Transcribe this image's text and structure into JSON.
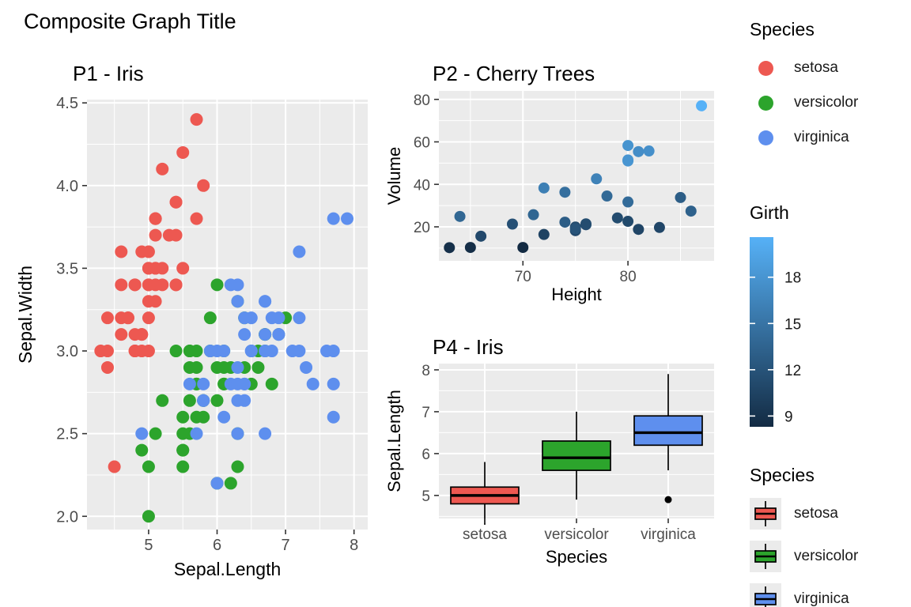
{
  "page": {
    "title": "Composite Graph Title"
  },
  "palette": {
    "panel_bg": "#EBEBEB",
    "grid": "#FFFFFF",
    "tick_text": "#4D4D4D",
    "tick_mark": "#333333",
    "title_text": "#000000",
    "species": {
      "setosa": "#ED5851",
      "versicolor": "#2CA42C",
      "virginica": "#5E8FEE"
    },
    "girth_gradient": {
      "low": "#132B43",
      "high": "#56B1F7"
    }
  },
  "legends": {
    "species_points": {
      "title": "Species",
      "items": [
        {
          "species": "setosa",
          "label": "setosa"
        },
        {
          "species": "versicolor",
          "label": "versicolor"
        },
        {
          "species": "virginica",
          "label": "virginica"
        }
      ]
    },
    "girth": {
      "title": "Girth",
      "domain": [
        8.3,
        20.6
      ],
      "ticks": [
        18,
        15,
        12,
        9
      ],
      "low": "#132B43",
      "high": "#56B1F7"
    },
    "species_box": {
      "title": "Species",
      "items": [
        {
          "species": "setosa",
          "label": "setosa"
        },
        {
          "species": "versicolor",
          "label": "versicolor"
        },
        {
          "species": "virginica",
          "label": "virginica"
        }
      ]
    }
  },
  "chart_data": [
    {
      "id": "p1",
      "type": "scatter",
      "title": "P1 - Iris",
      "xlabel": "Sepal.Length",
      "ylabel": "Sepal.Width",
      "xdomain": [
        4.1,
        8.2
      ],
      "ydomain": [
        1.92,
        4.52
      ],
      "xticks": [
        5,
        6,
        7,
        8
      ],
      "yticks": [
        2.0,
        2.5,
        3.0,
        3.5,
        4.0,
        4.5
      ],
      "ytick_labels": [
        "2.0",
        "2.5",
        "3.0",
        "3.5",
        "4.0",
        "4.5"
      ],
      "series": [
        {
          "name": "setosa",
          "points": [
            [
              5.1,
              3.5
            ],
            [
              4.9,
              3.0
            ],
            [
              4.7,
              3.2
            ],
            [
              4.6,
              3.1
            ],
            [
              5.0,
              3.6
            ],
            [
              5.4,
              3.9
            ],
            [
              4.6,
              3.4
            ],
            [
              5.0,
              3.4
            ],
            [
              4.4,
              2.9
            ],
            [
              4.9,
              3.1
            ],
            [
              5.4,
              3.7
            ],
            [
              4.8,
              3.4
            ],
            [
              4.8,
              3.0
            ],
            [
              4.3,
              3.0
            ],
            [
              5.8,
              4.0
            ],
            [
              5.7,
              4.4
            ],
            [
              5.4,
              3.9
            ],
            [
              5.1,
              3.5
            ],
            [
              5.7,
              3.8
            ],
            [
              5.1,
              3.8
            ],
            [
              5.4,
              3.4
            ],
            [
              5.1,
              3.7
            ],
            [
              4.6,
              3.6
            ],
            [
              5.1,
              3.3
            ],
            [
              4.8,
              3.4
            ],
            [
              5.0,
              3.0
            ],
            [
              5.0,
              3.4
            ],
            [
              5.2,
              3.5
            ],
            [
              5.2,
              3.4
            ],
            [
              4.7,
              3.2
            ],
            [
              4.8,
              3.1
            ],
            [
              5.4,
              3.4
            ],
            [
              5.2,
              4.1
            ],
            [
              5.5,
              4.2
            ],
            [
              4.9,
              3.1
            ],
            [
              5.0,
              3.2
            ],
            [
              5.5,
              3.5
            ],
            [
              4.9,
              3.6
            ],
            [
              4.4,
              3.0
            ],
            [
              5.1,
              3.4
            ],
            [
              5.0,
              3.5
            ],
            [
              4.5,
              2.3
            ],
            [
              4.4,
              3.2
            ],
            [
              5.0,
              3.5
            ],
            [
              5.1,
              3.8
            ],
            [
              4.8,
              3.0
            ],
            [
              5.1,
              3.8
            ],
            [
              4.6,
              3.2
            ],
            [
              5.3,
              3.7
            ],
            [
              5.0,
              3.3
            ]
          ]
        },
        {
          "name": "versicolor",
          "points": [
            [
              7.0,
              3.2
            ],
            [
              6.4,
              3.2
            ],
            [
              6.9,
              3.1
            ],
            [
              5.5,
              2.3
            ],
            [
              6.5,
              2.8
            ],
            [
              5.7,
              2.8
            ],
            [
              6.3,
              3.3
            ],
            [
              4.9,
              2.4
            ],
            [
              6.6,
              2.9
            ],
            [
              5.2,
              2.7
            ],
            [
              5.0,
              2.0
            ],
            [
              5.9,
              3.0
            ],
            [
              6.0,
              2.2
            ],
            [
              6.1,
              2.9
            ],
            [
              5.6,
              2.9
            ],
            [
              6.7,
              3.1
            ],
            [
              5.6,
              3.0
            ],
            [
              5.8,
              2.7
            ],
            [
              6.2,
              2.2
            ],
            [
              5.6,
              2.5
            ],
            [
              5.9,
              3.2
            ],
            [
              6.1,
              2.8
            ],
            [
              6.3,
              2.5
            ],
            [
              6.1,
              2.8
            ],
            [
              6.4,
              2.9
            ],
            [
              6.6,
              3.0
            ],
            [
              6.8,
              2.8
            ],
            [
              6.7,
              3.0
            ],
            [
              6.0,
              2.9
            ],
            [
              5.7,
              2.6
            ],
            [
              5.5,
              2.4
            ],
            [
              5.5,
              2.4
            ],
            [
              5.8,
              2.7
            ],
            [
              6.0,
              2.7
            ],
            [
              5.4,
              3.0
            ],
            [
              6.0,
              3.4
            ],
            [
              6.7,
              3.1
            ],
            [
              6.3,
              2.3
            ],
            [
              5.6,
              3.0
            ],
            [
              5.5,
              2.5
            ],
            [
              5.5,
              2.6
            ],
            [
              6.1,
              3.0
            ],
            [
              5.8,
              2.6
            ],
            [
              5.0,
              2.3
            ],
            [
              5.6,
              2.7
            ],
            [
              5.7,
              3.0
            ],
            [
              5.7,
              2.9
            ],
            [
              6.2,
              2.9
            ],
            [
              5.1,
              2.5
            ],
            [
              5.7,
              2.8
            ]
          ]
        },
        {
          "name": "virginica",
          "points": [
            [
              6.3,
              3.3
            ],
            [
              5.8,
              2.7
            ],
            [
              7.1,
              3.0
            ],
            [
              6.3,
              2.9
            ],
            [
              6.5,
              3.0
            ],
            [
              7.6,
              3.0
            ],
            [
              4.9,
              2.5
            ],
            [
              7.3,
              2.9
            ],
            [
              6.7,
              2.5
            ],
            [
              7.2,
              3.6
            ],
            [
              6.5,
              3.2
            ],
            [
              6.4,
              2.7
            ],
            [
              6.8,
              3.0
            ],
            [
              5.7,
              2.5
            ],
            [
              5.8,
              2.8
            ],
            [
              6.4,
              3.2
            ],
            [
              6.5,
              3.0
            ],
            [
              7.7,
              3.8
            ],
            [
              7.7,
              2.6
            ],
            [
              6.0,
              2.2
            ],
            [
              6.9,
              3.2
            ],
            [
              5.6,
              2.8
            ],
            [
              7.7,
              2.8
            ],
            [
              6.3,
              2.7
            ],
            [
              6.7,
              3.3
            ],
            [
              7.2,
              3.2
            ],
            [
              6.2,
              2.8
            ],
            [
              6.1,
              3.0
            ],
            [
              6.4,
              2.8
            ],
            [
              7.2,
              3.0
            ],
            [
              7.4,
              2.8
            ],
            [
              7.9,
              3.8
            ],
            [
              6.4,
              2.8
            ],
            [
              6.3,
              2.8
            ],
            [
              6.1,
              2.6
            ],
            [
              7.7,
              3.0
            ],
            [
              6.3,
              3.4
            ],
            [
              6.4,
              3.1
            ],
            [
              6.0,
              3.0
            ],
            [
              6.9,
              3.1
            ],
            [
              6.7,
              3.1
            ],
            [
              6.9,
              3.1
            ],
            [
              5.8,
              2.7
            ],
            [
              6.8,
              3.2
            ],
            [
              6.7,
              3.3
            ],
            [
              6.7,
              3.0
            ],
            [
              6.3,
              2.5
            ],
            [
              6.5,
              3.0
            ],
            [
              6.2,
              3.4
            ],
            [
              5.9,
              3.0
            ]
          ]
        }
      ]
    },
    {
      "id": "p2",
      "type": "scatter",
      "title": "P2 - Cherry Trees",
      "xlabel": "Height",
      "ylabel": "Volume",
      "xdomain": [
        62,
        88.2
      ],
      "ydomain": [
        4,
        84
      ],
      "xticks": [
        70,
        80
      ],
      "yticks": [
        20,
        40,
        60,
        80
      ],
      "color_by": "Girth",
      "color_domain": [
        8.3,
        20.6
      ],
      "points_format": [
        "height",
        "volume",
        "girth"
      ],
      "points": [
        [
          70,
          10.3,
          8.3
        ],
        [
          65,
          10.3,
          8.6
        ],
        [
          63,
          10.2,
          8.8
        ],
        [
          72,
          16.4,
          10.5
        ],
        [
          81,
          18.8,
          10.7
        ],
        [
          83,
          19.7,
          10.8
        ],
        [
          66,
          15.6,
          11.0
        ],
        [
          75,
          18.2,
          11.0
        ],
        [
          80,
          22.6,
          11.1
        ],
        [
          75,
          19.9,
          11.2
        ],
        [
          79,
          24.2,
          11.3
        ],
        [
          76,
          21.0,
          11.4
        ],
        [
          76,
          21.4,
          11.4
        ],
        [
          69,
          21.3,
          11.7
        ],
        [
          75,
          19.1,
          12.0
        ],
        [
          74,
          22.2,
          12.9
        ],
        [
          85,
          33.8,
          12.9
        ],
        [
          86,
          27.4,
          13.3
        ],
        [
          71,
          25.7,
          13.7
        ],
        [
          64,
          24.9,
          13.8
        ],
        [
          78,
          34.5,
          14.0
        ],
        [
          80,
          31.7,
          14.2
        ],
        [
          74,
          36.3,
          14.5
        ],
        [
          72,
          38.3,
          16.0
        ],
        [
          77,
          42.6,
          16.3
        ],
        [
          81,
          55.4,
          17.3
        ],
        [
          82,
          55.7,
          17.5
        ],
        [
          80,
          58.3,
          17.9
        ],
        [
          80,
          51.5,
          18.0
        ],
        [
          80,
          51.0,
          18.0
        ],
        [
          87,
          77.0,
          20.6
        ]
      ]
    },
    {
      "id": "p4",
      "type": "boxplot",
      "title": "P4 - Iris",
      "xlabel": "Species",
      "ylabel": "Sepal.Length",
      "ydomain": [
        4.45,
        8.15
      ],
      "yticks": [
        5,
        6,
        7,
        8
      ],
      "categories": [
        "setosa",
        "versicolor",
        "virginica"
      ],
      "boxes": [
        {
          "species": "setosa",
          "whisker_min": 4.3,
          "q1": 4.8,
          "median": 5.0,
          "q3": 5.2,
          "whisker_max": 5.8,
          "outliers": []
        },
        {
          "species": "versicolor",
          "whisker_min": 4.9,
          "q1": 5.6,
          "median": 5.9,
          "q3": 6.3,
          "whisker_max": 7.0,
          "outliers": []
        },
        {
          "species": "virginica",
          "whisker_min": 5.6,
          "q1": 6.2,
          "median": 6.5,
          "q3": 6.9,
          "whisker_max": 7.9,
          "outliers": [
            4.9
          ]
        }
      ]
    }
  ]
}
